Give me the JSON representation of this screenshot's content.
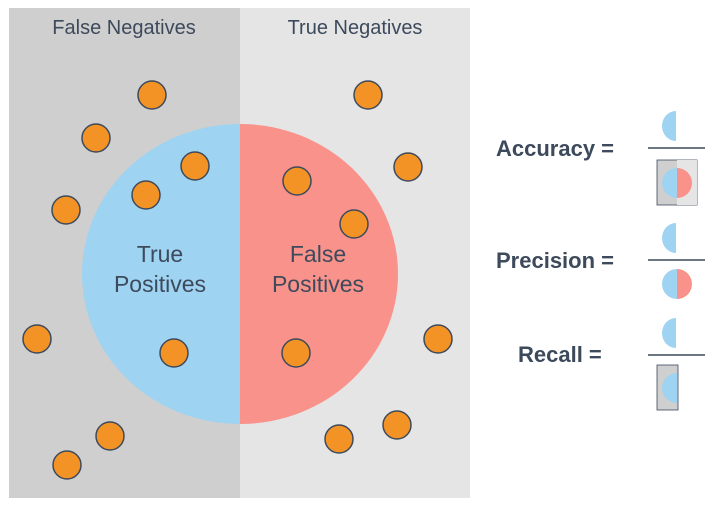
{
  "regions": {
    "left_label": "False Negatives",
    "right_label": "True Negatives"
  },
  "circle": {
    "left_line1": "True",
    "left_line2": "Positives",
    "right_line1": "False",
    "right_line2": "Positives"
  },
  "formulas": {
    "accuracy": "Accuracy =",
    "precision": "Precision =",
    "recall": "Recall ="
  },
  "colors": {
    "left_background": "#cfcfcf",
    "right_background": "#e5e5e5",
    "true_positive_blue": "#9fd3f2",
    "false_positive_red": "#f9928a",
    "dot_orange": "#f39325",
    "dot_outline": "#3d4a5c",
    "text": "#3d4a5c"
  }
}
